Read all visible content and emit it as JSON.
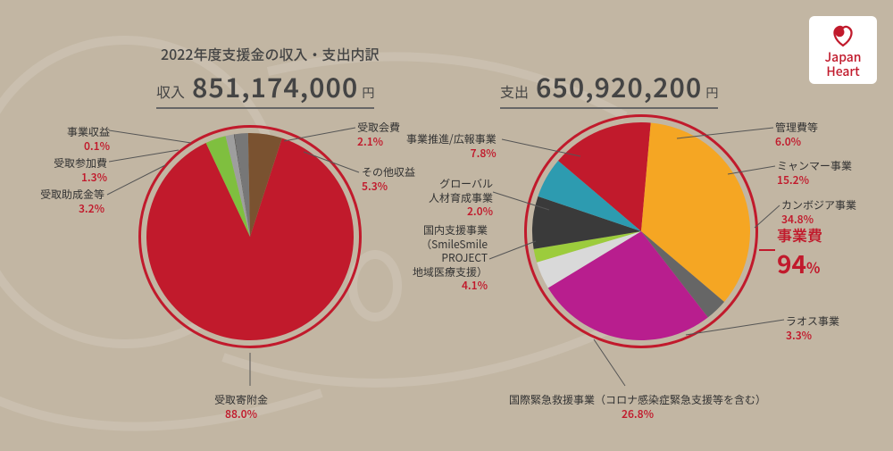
{
  "title": "2022年度支援金の収入・支出内訳",
  "logo": {
    "line1": "Japan",
    "line2": "Heart",
    "brand_color": "#c11a2c"
  },
  "income": {
    "label": "収入",
    "amount": "851,174,000",
    "unit": "円",
    "ring_color": "#c11a2c",
    "slices": [
      {
        "name": "受取寄附金",
        "pct": 88.0,
        "color": "#c11a2c"
      },
      {
        "name": "受取助成金等",
        "pct": 3.2,
        "color": "#7fbf3f"
      },
      {
        "name": "受取参加費",
        "pct": 1.3,
        "color": "#9e9e9e"
      },
      {
        "name": "事業収益",
        "pct": 0.1,
        "color": "#444444"
      },
      {
        "name": "受取会費",
        "pct": 2.1,
        "color": "#777777"
      },
      {
        "name": "その他収益",
        "pct": 5.3,
        "color": "#7a5230"
      }
    ]
  },
  "expense": {
    "label": "支出",
    "amount": "650,920,200",
    "unit": "円",
    "ring_color": "#c11a2c",
    "program_label": "事業費",
    "program_pct": "94",
    "slices": [
      {
        "name": "ミャンマー事業",
        "pct": 15.2,
        "color": "#c11a2c"
      },
      {
        "name": "カンボジア事業",
        "pct": 34.8,
        "color": "#f5a623"
      },
      {
        "name": "ラオス事業",
        "pct": 3.3,
        "color": "#666666"
      },
      {
        "name": "国際緊急救援事業（コロナ感染症緊急支援等を含む）",
        "pct": 26.8,
        "color": "#b81e8e"
      },
      {
        "name": "国内支援事業\n（SmileSmile\nPROJECT\n地域医療支援）",
        "pct": 4.1,
        "color": "#d9d9d9"
      },
      {
        "name": "グローバル\n人材育成事業",
        "pct": 2.0,
        "color": "#9ccc3c"
      },
      {
        "name": "事業推進/広報事業",
        "pct": 7.8,
        "color": "#3a3a3a"
      },
      {
        "name": "管理費等",
        "pct": 6.0,
        "color": "#2d9bb0"
      }
    ]
  },
  "style": {
    "bg": "#c2b6a3",
    "text": "#333333",
    "accent": "#c11a2c",
    "ring_gap": 6
  }
}
